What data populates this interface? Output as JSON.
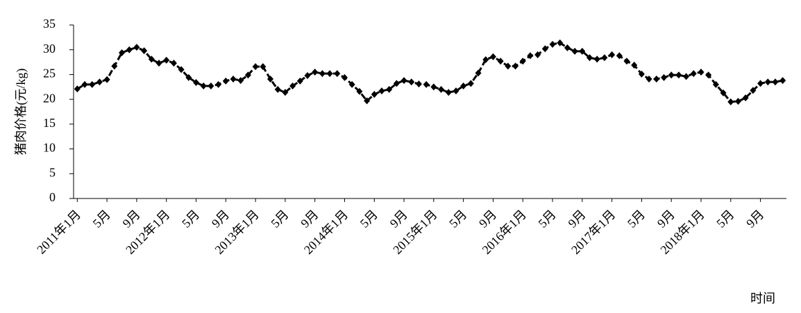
{
  "chart_data": {
    "type": "line",
    "y_label": "猪肉价格(元/kg)",
    "x_label": "时间",
    "categories": [
      "2011年1月",
      null,
      null,
      null,
      "5月",
      null,
      null,
      null,
      "9月",
      null,
      null,
      null,
      "2012年1月",
      null,
      null,
      null,
      "5月",
      null,
      null,
      null,
      "9月",
      null,
      null,
      null,
      "2013年1月",
      null,
      null,
      null,
      "5月",
      null,
      null,
      null,
      "9月",
      null,
      null,
      null,
      "2014年1月",
      null,
      null,
      null,
      "5月",
      null,
      null,
      null,
      "9月",
      null,
      null,
      null,
      "2015年1月",
      null,
      null,
      null,
      "5月",
      null,
      null,
      null,
      "9月",
      null,
      null,
      null,
      "2016年1月",
      null,
      null,
      null,
      "5月",
      null,
      null,
      null,
      "9月",
      null,
      null,
      null,
      "2017年1月",
      null,
      null,
      null,
      "5月",
      null,
      null,
      null,
      "9月",
      null,
      null,
      null,
      "2018年1月",
      null,
      null,
      null,
      "5月",
      null,
      null,
      null,
      "9月",
      null,
      null,
      null
    ],
    "values": [
      22.1,
      23,
      23,
      23.5,
      24,
      26.7,
      29.4,
      30,
      30.5,
      29.8,
      28.1,
      27.3,
      27.9,
      27.3,
      26,
      24.4,
      23.4,
      22.7,
      22.7,
      23,
      23.7,
      24.1,
      23.8,
      24.9,
      26.6,
      26.6,
      24.1,
      22,
      21.4,
      22.7,
      23.7,
      24.8,
      25.5,
      25.2,
      25.2,
      25.2,
      24.4,
      23,
      21.6,
      19.7,
      21,
      21.7,
      22,
      23.2,
      23.8,
      23.5,
      23.1,
      23,
      22.5,
      22,
      21.4,
      21.7,
      22.7,
      23.2,
      25.3,
      28,
      28.6,
      27.7,
      26.7,
      26.7,
      27.7,
      28.8,
      29,
      30.2,
      31.1,
      31.4,
      30.4,
      29.7,
      29.7,
      28.4,
      28.1,
      28.4,
      29,
      28.8,
      27.7,
      26.9,
      25.1,
      24.1,
      24.1,
      24.4,
      24.9,
      24.9,
      24.6,
      25.2,
      25.5,
      24.9,
      23,
      21.3,
      19.5,
      19.6,
      20.3,
      21.8,
      23.2,
      23.5,
      23.5,
      23.8
    ],
    "color": "#000000",
    "ylim": [
      0,
      35
    ],
    "yticks": [
      0,
      5,
      10,
      15,
      20,
      25,
      30,
      35
    ],
    "grid": false
  }
}
